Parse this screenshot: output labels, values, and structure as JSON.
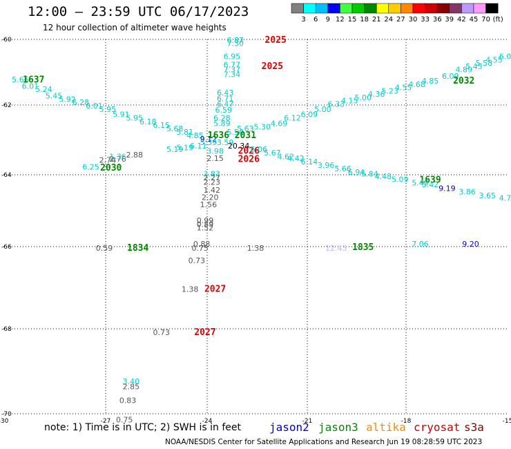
{
  "header": {
    "title": "12:00 — 23:59 UTC 06/17/2023",
    "subtitle": "12 hour collection of altimeter wave heights"
  },
  "legend": {
    "labels": [
      "3",
      "6",
      "9",
      "12",
      "15",
      "18",
      "21",
      "24",
      "27",
      "30",
      "33",
      "36",
      "39",
      "42",
      "45",
      "70",
      "(ft)"
    ],
    "colors": [
      "#808080",
      "#00ffff",
      "#00bfff",
      "#0000ff",
      "#40ff40",
      "#00cc00",
      "#008800",
      "#ffff00",
      "#ffcc00",
      "#ff8800",
      "#ff0000",
      "#cc0000",
      "#880000",
      "#883366",
      "#bb99ff",
      "#ff99ff",
      "#000000"
    ]
  },
  "axes": {
    "y_ticks": [
      "-60",
      "-62",
      "-64",
      "-66",
      "-68",
      "-70"
    ],
    "x_ticks": [
      "-30",
      "-27",
      "-24",
      "-21",
      "-18",
      "-15"
    ]
  },
  "labels": [
    {
      "t": "6.87",
      "lon": -23.1,
      "lat": -60.1,
      "c": "#00cccc"
    },
    {
      "t": "7.30",
      "lon": -23.1,
      "lat": -60.2,
      "c": "#00cccc"
    },
    {
      "t": "2025",
      "lon": -21.9,
      "lat": -60.1,
      "c": "#dd0000",
      "big": true
    },
    {
      "t": "6.95",
      "lon": -23.2,
      "lat": -60.6,
      "c": "#00cccc"
    },
    {
      "t": "6.77",
      "lon": -23.2,
      "lat": -60.85,
      "c": "#00cccc"
    },
    {
      "t": "7.37",
      "lon": -23.2,
      "lat": -61.0,
      "c": "#00cccc"
    },
    {
      "t": "7.34",
      "lon": -23.2,
      "lat": -61.15,
      "c": "#00cccc"
    },
    {
      "t": "2025",
      "lon": -22.0,
      "lat": -60.9,
      "c": "#dd0000",
      "big": true
    },
    {
      "t": "6.43",
      "lon": -23.4,
      "lat": -61.7,
      "c": "#00cccc"
    },
    {
      "t": "6.71",
      "lon": -23.4,
      "lat": -61.88,
      "c": "#00cccc"
    },
    {
      "t": "6.47",
      "lon": -23.4,
      "lat": -62.05,
      "c": "#00cccc"
    },
    {
      "t": "6.59",
      "lon": -23.45,
      "lat": -62.22,
      "c": "#00cccc"
    },
    {
      "t": "6.28",
      "lon": -23.5,
      "lat": -62.45,
      "c": "#00cccc"
    },
    {
      "t": "5.89",
      "lon": -23.5,
      "lat": -62.6,
      "c": "#00cccc"
    },
    {
      "t": "5.66",
      "lon": -29.5,
      "lat": -61.3,
      "c": "#00cccc"
    },
    {
      "t": "1637",
      "lon": -29.1,
      "lat": -61.32,
      "c": "#008800",
      "big": true
    },
    {
      "t": "6.01",
      "lon": -29.2,
      "lat": -61.5,
      "c": "#00cccc"
    },
    {
      "t": "5.24",
      "lon": -28.8,
      "lat": -61.6,
      "c": "#00cccc"
    },
    {
      "t": "5.45",
      "lon": -28.5,
      "lat": -61.8,
      "c": "#00cccc"
    },
    {
      "t": "5.92",
      "lon": -28.1,
      "lat": -61.9,
      "c": "#00cccc"
    },
    {
      "t": "6.28",
      "lon": -27.7,
      "lat": -62.0,
      "c": "#00cccc"
    },
    {
      "t": "6.01",
      "lon": -27.3,
      "lat": -62.1,
      "c": "#00cccc"
    },
    {
      "t": "5.95",
      "lon": -26.9,
      "lat": -62.2,
      "c": "#00cccc"
    },
    {
      "t": "5.91",
      "lon": -26.5,
      "lat": -62.35,
      "c": "#00cccc"
    },
    {
      "t": "5.95",
      "lon": -26.1,
      "lat": -62.45,
      "c": "#00cccc"
    },
    {
      "t": "6.18",
      "lon": -25.7,
      "lat": -62.55,
      "c": "#00cccc"
    },
    {
      "t": "6.15",
      "lon": -25.3,
      "lat": -62.65,
      "c": "#00cccc"
    },
    {
      "t": "5.68",
      "lon": -24.9,
      "lat": -62.75,
      "c": "#00cccc"
    },
    {
      "t": "5.81",
      "lon": -24.6,
      "lat": -62.85,
      "c": "#00cccc"
    },
    {
      "t": "4.85",
      "lon": -24.3,
      "lat": -62.95,
      "c": "#00cccc"
    },
    {
      "t": "9.12",
      "lon": -23.9,
      "lat": -63.05,
      "c": "#0000cc"
    },
    {
      "t": "1636",
      "lon": -23.6,
      "lat": -62.95,
      "c": "#008800",
      "big": true
    },
    {
      "t": "5.54",
      "lon": -23.1,
      "lat": -62.85,
      "c": "#00cccc"
    },
    {
      "t": "5.63",
      "lon": -22.8,
      "lat": -62.75,
      "c": "#00cccc"
    },
    {
      "t": "2031",
      "lon": -22.8,
      "lat": -62.95,
      "c": "#008800",
      "big": true
    },
    {
      "t": "5.30",
      "lon": -22.3,
      "lat": -62.7,
      "c": "#00cccc"
    },
    {
      "t": "4.69",
      "lon": -21.8,
      "lat": -62.6,
      "c": "#00cccc"
    },
    {
      "t": "6.12",
      "lon": -21.4,
      "lat": -62.45,
      "c": "#00cccc"
    },
    {
      "t": "6.09",
      "lon": -20.9,
      "lat": -62.35,
      "c": "#00cccc"
    },
    {
      "t": "5.00",
      "lon": -20.5,
      "lat": -62.2,
      "c": "#00cccc"
    },
    {
      "t": "6.33",
      "lon": -20.1,
      "lat": -62.05,
      "c": "#00cccc"
    },
    {
      "t": "4.15",
      "lon": -19.7,
      "lat": -61.95,
      "c": "#00cccc"
    },
    {
      "t": "5.00",
      "lon": -19.3,
      "lat": -61.85,
      "c": "#00cccc"
    },
    {
      "t": "4.36",
      "lon": -18.9,
      "lat": -61.75,
      "c": "#00cccc"
    },
    {
      "t": "5.23",
      "lon": -18.5,
      "lat": -61.65,
      "c": "#00cccc"
    },
    {
      "t": "4.55",
      "lon": -18.1,
      "lat": -61.55,
      "c": "#00cccc"
    },
    {
      "t": "4.68",
      "lon": -17.7,
      "lat": -61.45,
      "c": "#00cccc"
    },
    {
      "t": "4.85",
      "lon": -17.3,
      "lat": -61.35,
      "c": "#00cccc"
    },
    {
      "t": "6.09",
      "lon": -16.7,
      "lat": -61.2,
      "c": "#00cccc"
    },
    {
      "t": "2032",
      "lon": -16.3,
      "lat": -61.35,
      "c": "#008800",
      "big": true
    },
    {
      "t": "4.89",
      "lon": -16.3,
      "lat": -61.0,
      "c": "#00cccc"
    },
    {
      "t": "5.45",
      "lon": -16.0,
      "lat": -60.9,
      "c": "#00cccc"
    },
    {
      "t": "5.58",
      "lon": -15.7,
      "lat": -60.8,
      "c": "#00cccc"
    },
    {
      "t": "4.55",
      "lon": -15.4,
      "lat": -60.7,
      "c": "#00cccc"
    },
    {
      "t": "6.08",
      "lon": -15.0,
      "lat": -60.6,
      "c": "#00cccc"
    },
    {
      "t": "5.62",
      "lon": -14.6,
      "lat": -60.5,
      "c": "#00cccc"
    },
    {
      "t": "5.19",
      "lon": -24.9,
      "lat": -63.35,
      "c": "#00cccc"
    },
    {
      "t": "5.19",
      "lon": -24.6,
      "lat": -63.3,
      "c": "#00cccc"
    },
    {
      "t": "6.11",
      "lon": -24.2,
      "lat": -63.25,
      "c": "#00cccc"
    },
    {
      "t": "5.39",
      "lon": -23.9,
      "lat": -63.15,
      "c": "#00cccc"
    },
    {
      "t": "3.59",
      "lon": -23.4,
      "lat": -63.15,
      "c": "#00cccc"
    },
    {
      "t": "3.98",
      "lon": -23.7,
      "lat": -63.4,
      "c": "#00cccc"
    },
    {
      "t": "20.34",
      "lon": -23.0,
      "lat": -63.25,
      "c": "#000000"
    },
    {
      "t": "2026",
      "lon": -22.7,
      "lat": -63.4,
      "c": "#dd0000",
      "big": true
    },
    {
      "t": "2.15",
      "lon": -23.7,
      "lat": -63.6,
      "c": "#555555"
    },
    {
      "t": "2026",
      "lon": -22.7,
      "lat": -63.63,
      "c": "#dd0000",
      "big": true
    },
    {
      "t": "6.06",
      "lon": -22.4,
      "lat": -63.35,
      "c": "#00cccc"
    },
    {
      "t": "5.67",
      "lon": -22.0,
      "lat": -63.45,
      "c": "#00cccc"
    },
    {
      "t": "4.62",
      "lon": -21.6,
      "lat": -63.55,
      "c": "#00cccc"
    },
    {
      "t": "4.42",
      "lon": -21.3,
      "lat": -63.6,
      "c": "#00cccc"
    },
    {
      "t": "6.14",
      "lon": -20.9,
      "lat": -63.7,
      "c": "#00cccc"
    },
    {
      "t": "3.96",
      "lon": -20.4,
      "lat": -63.8,
      "c": "#00cccc"
    },
    {
      "t": "5.66",
      "lon": -19.9,
      "lat": -63.9,
      "c": "#00cccc"
    },
    {
      "t": "6.94",
      "lon": -19.5,
      "lat": -64.0,
      "c": "#00cccc"
    },
    {
      "t": "5.84",
      "lon": -19.1,
      "lat": -64.05,
      "c": "#00cccc"
    },
    {
      "t": "4.48",
      "lon": -18.7,
      "lat": -64.12,
      "c": "#00cccc"
    },
    {
      "t": "5.09",
      "lon": -18.2,
      "lat": -64.2,
      "c": "#00cccc"
    },
    {
      "t": "1639",
      "lon": -17.3,
      "lat": -64.22,
      "c": "#008800",
      "big": true
    },
    {
      "t": "5.49",
      "lon": -17.6,
      "lat": -64.3,
      "c": "#00cccc"
    },
    {
      "t": "5.42",
      "lon": -17.3,
      "lat": -64.35,
      "c": "#00cccc"
    },
    {
      "t": "9.19",
      "lon": -16.8,
      "lat": -64.45,
      "c": "#0000cc"
    },
    {
      "t": "3.86",
      "lon": -16.2,
      "lat": -64.55,
      "c": "#00cccc"
    },
    {
      "t": "3.65",
      "lon": -15.6,
      "lat": -64.65,
      "c": "#00cccc"
    },
    {
      "t": "4.72",
      "lon": -15.0,
      "lat": -64.72,
      "c": "#00cccc"
    },
    {
      "t": "6.25",
      "lon": -27.4,
      "lat": -63.85,
      "c": "#00cccc"
    },
    {
      "t": "2030",
      "lon": -26.8,
      "lat": -63.88,
      "c": "#008800",
      "big": true
    },
    {
      "t": "2.74",
      "lon": -26.9,
      "lat": -63.65,
      "c": "#555555"
    },
    {
      "t": "2.76",
      "lon": -26.6,
      "lat": -63.62,
      "c": "#555555"
    },
    {
      "t": "1.36",
      "lon": -26.6,
      "lat": -63.55,
      "c": "#00cccc"
    },
    {
      "t": "2.88",
      "lon": -26.1,
      "lat": -63.5,
      "c": "#555555"
    },
    {
      "t": "3.83",
      "lon": -23.8,
      "lat": -64.05,
      "c": "#00cccc"
    },
    {
      "t": "2.27",
      "lon": -23.8,
      "lat": -64.15,
      "c": "#555555"
    },
    {
      "t": "2.23",
      "lon": -23.8,
      "lat": -64.28,
      "c": "#555555"
    },
    {
      "t": "1.42",
      "lon": -23.8,
      "lat": -64.5,
      "c": "#555555"
    },
    {
      "t": "2.20",
      "lon": -23.85,
      "lat": -64.7,
      "c": "#555555"
    },
    {
      "t": "1.56",
      "lon": -23.9,
      "lat": -64.9,
      "c": "#555555"
    },
    {
      "t": "0.99",
      "lon": -24.0,
      "lat": -65.35,
      "c": "#555555"
    },
    {
      "t": "0.89",
      "lon": -24.0,
      "lat": -65.45,
      "c": "#555555"
    },
    {
      "t": "1.52",
      "lon": -24.0,
      "lat": -65.55,
      "c": "#555555"
    },
    {
      "t": "0.88",
      "lon": -24.1,
      "lat": -66.0,
      "c": "#555555"
    },
    {
      "t": "0.75",
      "lon": -24.15,
      "lat": -66.1,
      "c": "#555555"
    },
    {
      "t": "0.59",
      "lon": -27.0,
      "lat": -66.1,
      "c": "#555555"
    },
    {
      "t": "1834",
      "lon": -26.0,
      "lat": -66.1,
      "c": "#008800",
      "big": true
    },
    {
      "t": "1.38",
      "lon": -22.5,
      "lat": -66.1,
      "c": "#555555"
    },
    {
      "t": "0.73",
      "lon": -24.25,
      "lat": -66.4,
      "c": "#555555"
    },
    {
      "t": "12.43",
      "lon": -20.1,
      "lat": -66.1,
      "c": "#bbbbff"
    },
    {
      "t": "1835",
      "lon": -19.3,
      "lat": -66.08,
      "c": "#008800",
      "big": true
    },
    {
      "t": "7.06",
      "lon": -17.6,
      "lat": -66.0,
      "c": "#00cccc"
    },
    {
      "t": "9.20",
      "lon": -16.1,
      "lat": -66.0,
      "c": "#0000cc"
    },
    {
      "t": "1.38",
      "lon": -24.45,
      "lat": -67.1,
      "c": "#555555"
    },
    {
      "t": "2027",
      "lon": -23.7,
      "lat": -67.1,
      "c": "#dd0000",
      "big": true
    },
    {
      "t": "0.73",
      "lon": -25.3,
      "lat": -68.15,
      "c": "#555555"
    },
    {
      "t": "2027",
      "lon": -24.0,
      "lat": -68.15,
      "c": "#dd0000",
      "big": true
    },
    {
      "t": "3.40",
      "lon": -26.2,
      "lat": -69.3,
      "c": "#00cccc"
    },
    {
      "t": "2.85",
      "lon": -26.2,
      "lat": -69.42,
      "c": "#555555"
    },
    {
      "t": "0.83",
      "lon": -26.3,
      "lat": -69.75,
      "c": "#555555"
    },
    {
      "t": "0.75",
      "lon": -26.4,
      "lat": -70.2,
      "c": "#555555"
    }
  ],
  "footer": {
    "note": "note: 1) Time is in UTC; 2) SWH is in feet",
    "satellites": [
      {
        "name": "jason2",
        "color": "#0000cc"
      },
      {
        "name": "jason3",
        "color": "#008800"
      },
      {
        "name": "altika",
        "color": "#ff8800"
      },
      {
        "name": "cryosat",
        "color": "#cc0000"
      },
      {
        "name": "s3a",
        "color": "#880000"
      }
    ],
    "credit": "NOAA/NESDIS Center for Satellite Applications and Research    Jun 19 08:28:59 UTC 2023"
  }
}
